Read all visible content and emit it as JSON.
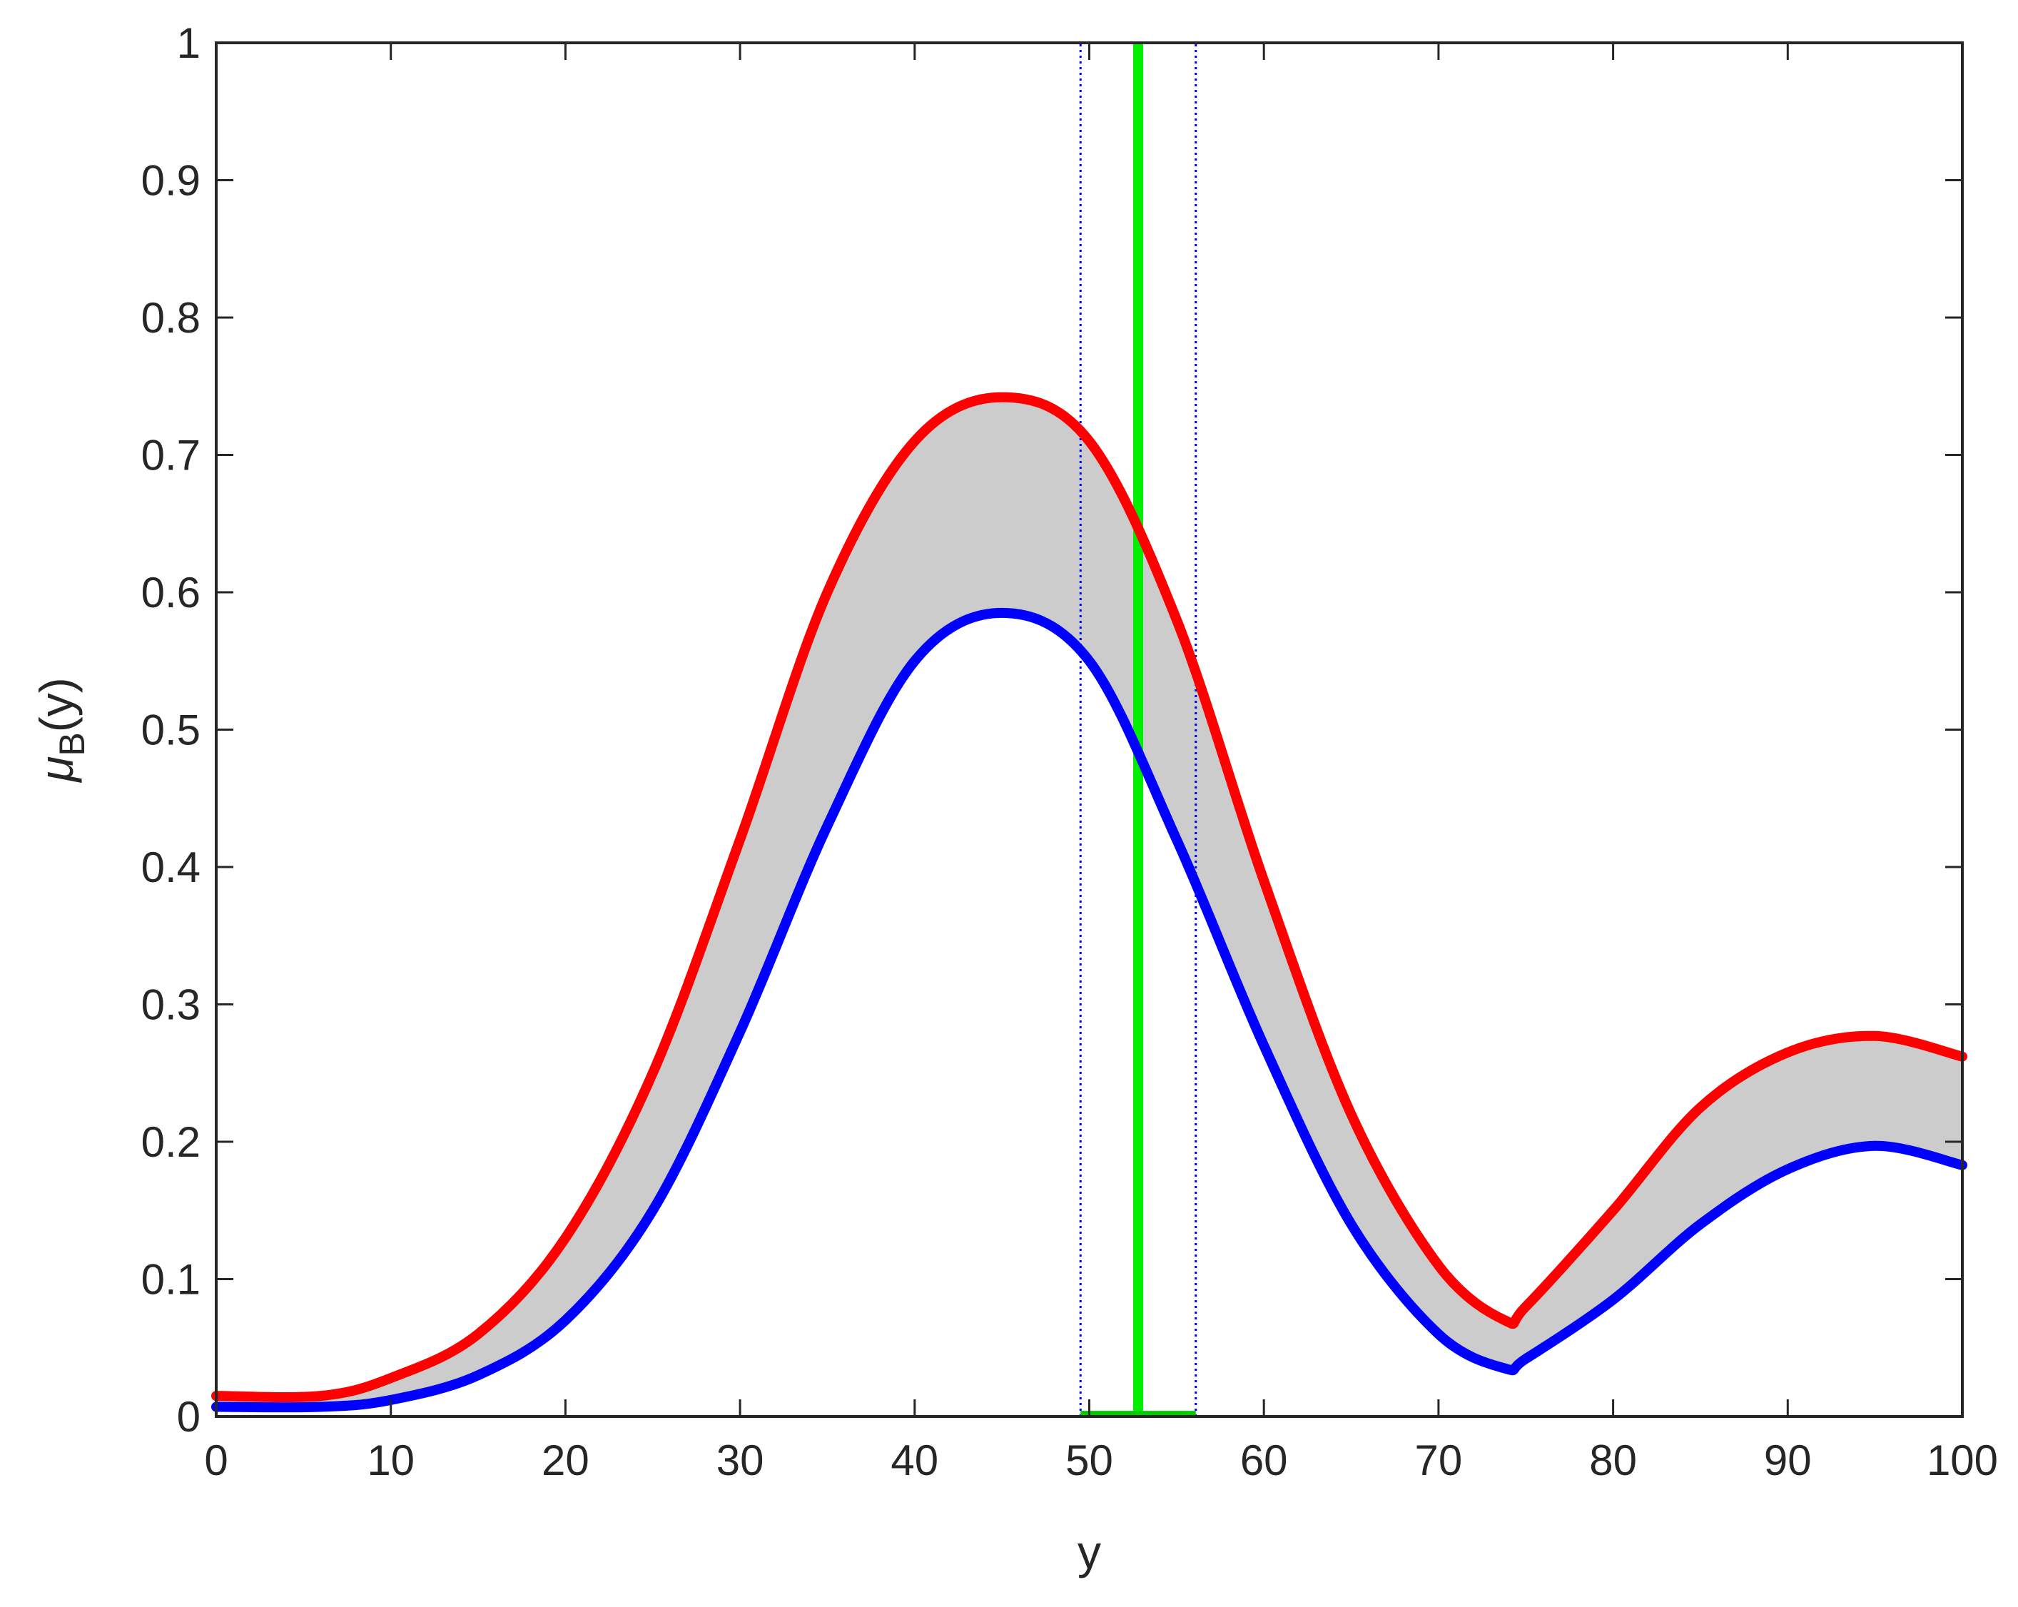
{
  "chart_data": {
    "type": "line",
    "xlabel": "y",
    "ylabel": {
      "main": "μ",
      "sub": "B",
      "suffix": "(y)"
    },
    "xlim": [
      0,
      100
    ],
    "ylim": [
      0,
      1
    ],
    "xticks": [
      0,
      10,
      20,
      30,
      40,
      50,
      60,
      70,
      80,
      90,
      100
    ],
    "yticks": [
      0,
      0.1,
      0.2,
      0.3,
      0.4,
      0.5,
      0.6,
      0.7,
      0.8,
      0.9,
      1
    ],
    "ytick_labels": [
      "0",
      "0.1",
      "0.2",
      "0.3",
      "0.4",
      "0.5",
      "0.6",
      "0.7",
      "0.8",
      "0.9",
      "1"
    ],
    "grid": false,
    "fill_between_color": "#cccccc",
    "series": [
      {
        "role": "upper",
        "color": "#ff0000",
        "x": [
          0,
          6,
          10,
          15,
          20,
          25,
          30,
          35,
          40,
          45,
          50,
          55,
          60,
          65,
          70,
          73.8,
          75,
          80,
          85,
          90,
          95,
          100
        ],
        "y": [
          0.015,
          0.015,
          0.028,
          0.06,
          0.13,
          0.25,
          0.42,
          0.6,
          0.71,
          0.742,
          0.71,
          0.58,
          0.39,
          0.22,
          0.11,
          0.07,
          0.08,
          0.15,
          0.225,
          0.265,
          0.277,
          0.262
        ]
      },
      {
        "role": "lower",
        "color": "#0000ff",
        "x": [
          0,
          6,
          10,
          15,
          20,
          25,
          30,
          35,
          40,
          45,
          50,
          55,
          60,
          65,
          70,
          73.8,
          75,
          80,
          85,
          90,
          95,
          100
        ],
        "y": [
          0.007,
          0.007,
          0.012,
          0.03,
          0.07,
          0.15,
          0.28,
          0.43,
          0.55,
          0.585,
          0.55,
          0.42,
          0.27,
          0.14,
          0.06,
          0.035,
          0.042,
          0.085,
          0.14,
          0.18,
          0.197,
          0.183
        ]
      }
    ],
    "vertical_lines": [
      {
        "x": 52.8,
        "y0": 0,
        "y1": 1,
        "color": "#00ee00",
        "style": "solid"
      },
      {
        "x": 49.5,
        "y0": 0,
        "y1": 1,
        "color": "#0000ff",
        "style": "dotted"
      },
      {
        "x": 56.1,
        "y0": 0,
        "y1": 1,
        "color": "#0000ff",
        "style": "dotted"
      }
    ],
    "interval": {
      "x0": 49.5,
      "x1": 56.1,
      "y": 0.002,
      "color": "#00cc00"
    }
  }
}
